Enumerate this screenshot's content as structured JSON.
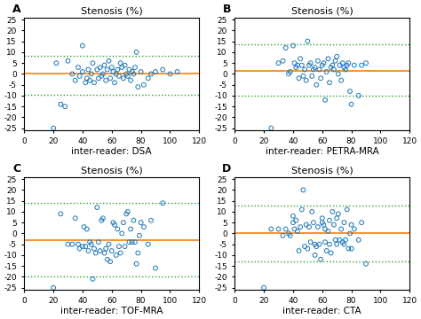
{
  "chart_data": [
    {
      "type": "scatter",
      "label": "A",
      "title": "Stenosis (%)",
      "xlabel": "inter-reader: DSA",
      "mean_line": 0,
      "upper_line": 8.5,
      "lower_line": -9.5,
      "ylim": [
        -26,
        26
      ],
      "yticks": [
        -25,
        -20,
        -15,
        -10,
        -5,
        0,
        5,
        10,
        15,
        20,
        25
      ],
      "xlim": [
        0,
        120
      ],
      "xticks": [
        0,
        20,
        40,
        60,
        80,
        100,
        120
      ],
      "x": [
        20,
        22,
        25,
        28,
        30,
        33,
        35,
        37,
        38,
        40,
        40,
        42,
        43,
        44,
        45,
        46,
        47,
        48,
        50,
        51,
        52,
        53,
        54,
        55,
        56,
        57,
        58,
        59,
        60,
        61,
        62,
        63,
        64,
        65,
        66,
        67,
        68,
        69,
        70,
        71,
        72,
        73,
        74,
        75,
        76,
        77,
        78,
        80,
        82,
        85,
        87,
        90,
        95,
        100,
        105
      ],
      "values": [
        -25,
        5,
        -14,
        -15,
        6,
        0,
        -3,
        3,
        -1,
        13,
        1,
        -4,
        -2,
        2,
        -3,
        0,
        5,
        -4,
        2,
        -2,
        3,
        -1,
        0,
        4,
        -3,
        2,
        6,
        -2,
        3,
        1,
        -4,
        0,
        2,
        -1,
        5,
        3,
        -2,
        4,
        0,
        -1,
        2,
        -3,
        1,
        0,
        3,
        10,
        -6,
        1,
        -5,
        -2,
        0,
        1,
        2,
        0,
        1
      ]
    },
    {
      "type": "scatter",
      "label": "B",
      "title": "Stenosis (%)",
      "xlabel": "inter-reader: PETRA-MRA",
      "mean_line": 1.5,
      "upper_line": 13.5,
      "lower_line": -10.0,
      "ylim": [
        -26,
        26
      ],
      "yticks": [
        -25,
        -20,
        -15,
        -10,
        -5,
        0,
        5,
        10,
        15,
        20,
        25
      ],
      "xlim": [
        0,
        120
      ],
      "xticks": [
        0,
        20,
        40,
        60,
        80,
        100,
        120
      ],
      "x": [
        25,
        30,
        33,
        35,
        37,
        38,
        40,
        41,
        42,
        43,
        44,
        45,
        46,
        47,
        48,
        49,
        50,
        51,
        52,
        53,
        54,
        55,
        56,
        57,
        58,
        59,
        60,
        61,
        62,
        63,
        64,
        65,
        66,
        67,
        68,
        69,
        70,
        71,
        72,
        73,
        74,
        75,
        76,
        77,
        78,
        79,
        80,
        82,
        85,
        87,
        90
      ],
      "values": [
        -25,
        5,
        6,
        12,
        0,
        1,
        13,
        5,
        3,
        4,
        -2,
        7,
        4,
        -1,
        2,
        -3,
        15,
        4,
        5,
        -1,
        2,
        3,
        -5,
        6,
        2,
        -2,
        4,
        5,
        -12,
        1,
        7,
        -4,
        3,
        4,
        2,
        6,
        8,
        0,
        4,
        -3,
        5,
        3,
        2,
        4,
        5,
        -8,
        -14,
        4,
        -10,
        4,
        5
      ]
    },
    {
      "type": "scatter",
      "label": "C",
      "title": "Stenosis (%)",
      "xlabel": "inter-reader: TOF-MRA",
      "mean_line": -3.0,
      "upper_line": 14.0,
      "lower_line": -20.0,
      "ylim": [
        -26,
        26
      ],
      "yticks": [
        -25,
        -20,
        -15,
        -10,
        -5,
        0,
        5,
        10,
        15,
        20,
        25
      ],
      "xlim": [
        0,
        120
      ],
      "xticks": [
        0,
        20,
        40,
        60,
        80,
        100,
        120
      ],
      "x": [
        20,
        25,
        30,
        33,
        35,
        37,
        38,
        40,
        41,
        42,
        43,
        44,
        45,
        46,
        47,
        48,
        49,
        50,
        51,
        52,
        53,
        54,
        55,
        56,
        57,
        58,
        59,
        60,
        61,
        62,
        63,
        64,
        65,
        66,
        67,
        68,
        69,
        70,
        71,
        72,
        73,
        74,
        75,
        76,
        77,
        78,
        79,
        80,
        82,
        85,
        87,
        90,
        95
      ],
      "values": [
        -25,
        9,
        -5,
        -5,
        7,
        -5,
        -7,
        -6,
        3,
        -6,
        2,
        -8,
        -4,
        -5,
        -21,
        -7,
        -9,
        12,
        -4,
        -8,
        6,
        7,
        -9,
        -7,
        -12,
        -5,
        -13,
        -8,
        5,
        4,
        -10,
        2,
        -6,
        -9,
        0,
        5,
        -6,
        9,
        10,
        -4,
        2,
        -4,
        6,
        -4,
        -14,
        -9,
        -1,
        5,
        3,
        -5,
        6,
        -16,
        14
      ]
    },
    {
      "type": "scatter",
      "label": "D",
      "title": "Stenosis (%)",
      "xlabel": "inter-reader: CTA",
      "mean_line": 0.0,
      "upper_line": 13.0,
      "lower_line": -13.0,
      "ylim": [
        -26,
        26
      ],
      "yticks": [
        -25,
        -20,
        -15,
        -10,
        -5,
        0,
        5,
        10,
        15,
        20,
        25
      ],
      "xlim": [
        0,
        120
      ],
      "xticks": [
        0,
        20,
        40,
        60,
        80,
        100,
        120
      ],
      "x": [
        20,
        25,
        30,
        33,
        35,
        37,
        38,
        40,
        41,
        42,
        43,
        44,
        45,
        46,
        47,
        48,
        49,
        50,
        51,
        52,
        53,
        54,
        55,
        56,
        57,
        58,
        59,
        60,
        61,
        62,
        63,
        64,
        65,
        66,
        67,
        68,
        69,
        70,
        71,
        72,
        73,
        74,
        75,
        76,
        77,
        78,
        79,
        80,
        82,
        85,
        87,
        90,
        40,
        55,
        60,
        62,
        65,
        70,
        75,
        80
      ],
      "values": [
        -25,
        2,
        2,
        -1,
        2,
        0,
        -1,
        5,
        2,
        6,
        1,
        -8,
        3,
        11,
        20,
        -6,
        4,
        -7,
        3,
        -4,
        10,
        5,
        -10,
        -6,
        3,
        -5,
        -12,
        5,
        4,
        2,
        -8,
        1,
        -5,
        -9,
        10,
        4,
        -3,
        7,
        9,
        -3,
        2,
        -4,
        5,
        -3,
        11,
        -7,
        0,
        4,
        2,
        -3,
        5,
        -14,
        8,
        -5,
        7,
        -4,
        6,
        -5,
        -5,
        -7
      ]
    }
  ]
}
